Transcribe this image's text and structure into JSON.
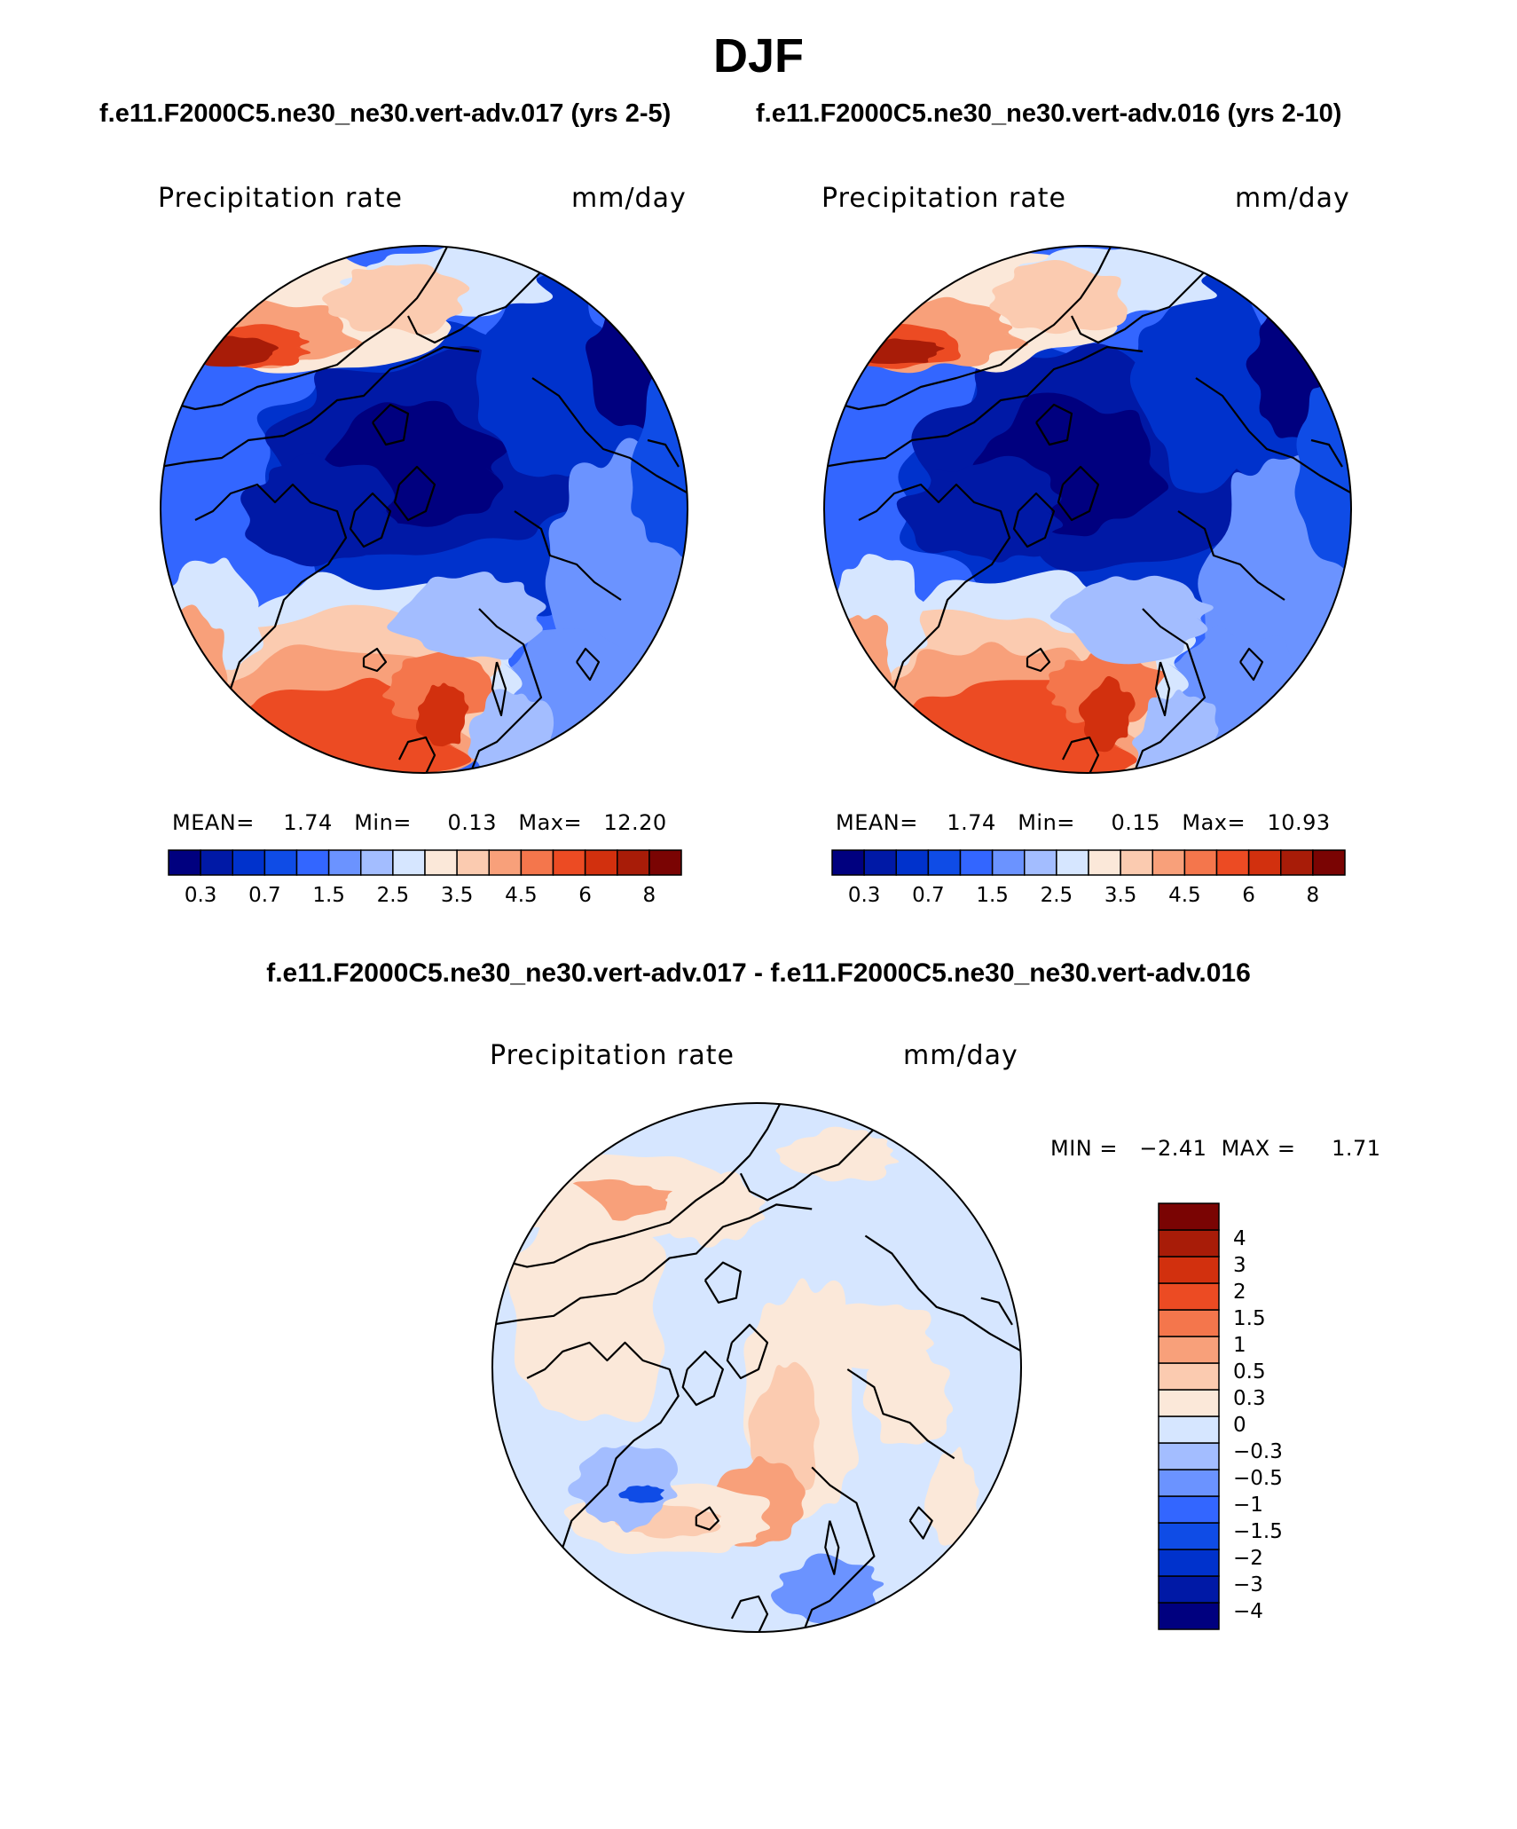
{
  "page": {
    "title": "DJF",
    "case_a": "f.e11.F2000C5.ne30_ne30.vert-adv.017 (yrs 2-5)",
    "case_b": "f.e11.F2000C5.ne30_ne30.vert-adv.016 (yrs 2-10)",
    "diff_title": "f.e11.F2000C5.ne30_ne30.vert-adv.017 - f.e11.F2000C5.ne30_ne30.vert-adv.016"
  },
  "panels": [
    {
      "variable": "Precipitation rate",
      "units": "mm/day",
      "stats": "MEAN=    1.74   Min=     0.13   Max=   12.20",
      "colorbar_ticks": [
        "0.3",
        "0.7",
        "1.5",
        "2.5",
        "3.5",
        "4.5",
        "6",
        "8"
      ]
    },
    {
      "variable": "Precipitation rate",
      "units": "mm/day",
      "stats": "MEAN=    1.74   Min=     0.15   Max=   10.93",
      "colorbar_ticks": [
        "0.3",
        "0.7",
        "1.5",
        "2.5",
        "3.5",
        "4.5",
        "6",
        "8"
      ]
    },
    {
      "variable": "Precipitation rate",
      "units": "mm/day",
      "stats": "MIN =   −2.41  MAX =     1.71",
      "colorbar_ticks": [
        "4",
        "3",
        "2",
        "1.5",
        "1",
        "0.5",
        "0.3",
        "0",
        "−0.3",
        "−0.5",
        "−1",
        "−1.5",
        "−2",
        "−3",
        "−4"
      ]
    }
  ],
  "colors": {
    "field_scale": [
      "#00007f",
      "#0019a6",
      "#0032cc",
      "#0f4ce6",
      "#3366ff",
      "#6b93ff",
      "#a3bdff",
      "#d6e6ff",
      "#fbe8d9",
      "#fbcbb0",
      "#f8a07a",
      "#f4764c",
      "#ec4b23",
      "#d2300e",
      "#a81c08",
      "#7a0403"
    ],
    "diff_scale": [
      "#00007f",
      "#0019a6",
      "#0032cc",
      "#0f4ce6",
      "#3366ff",
      "#6b93ff",
      "#a3bdff",
      "#d6e6ff",
      "#fbe8d9",
      "#fbcbb0",
      "#f8a07a",
      "#f4764c",
      "#ec4b23",
      "#d2300e",
      "#a81c08",
      "#7a0403"
    ]
  }
}
